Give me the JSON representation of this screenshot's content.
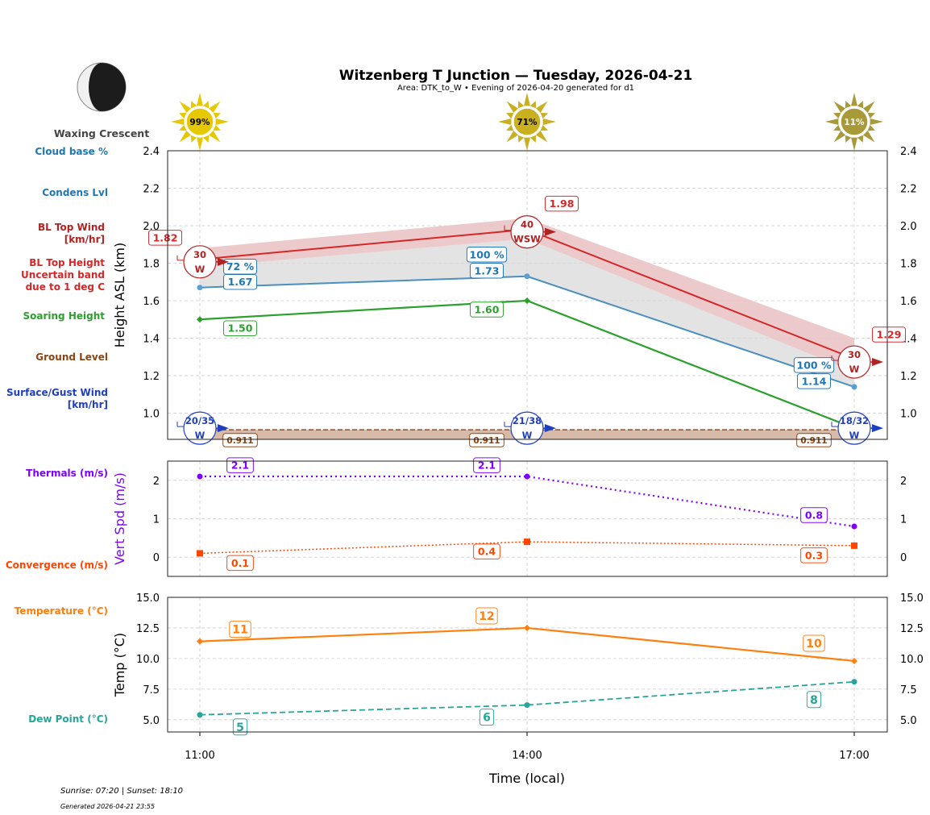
{
  "title": "Witzenberg T Junction — Tuesday, 2026-04-21",
  "subtitle": "Area: DTK_to_W • Evening of 2026-04-20 generated for d1",
  "moon": {
    "phase": "Waxing Crescent",
    "icon": "moon-waxing-crescent-icon"
  },
  "suns": [
    {
      "time": "11:00",
      "label": "99%",
      "color": "#e6c800"
    },
    {
      "time": "14:00",
      "label": "71%",
      "color": "#c8b020"
    },
    {
      "time": "17:00",
      "label": "11%",
      "color": "#a89a38"
    }
  ],
  "row_labels": {
    "cloud_base": "Cloud base %",
    "condens": "Condens Lvl",
    "bl_top_wind": [
      "BL Top Wind",
      "[km/hr]"
    ],
    "bl_top_height": [
      "BL Top Height",
      "Uncertain band",
      "due to 1 deg C"
    ],
    "soaring": "Soaring Height",
    "ground": "Ground Level",
    "surface_wind": [
      "Surface/Gust Wind",
      "[km/hr]"
    ],
    "thermals": "Thermals (m/s)",
    "convergence": "Convergence (m/s)",
    "temperature": "Temperature (°C)",
    "dewpoint": "Dew Point (°C)"
  },
  "footer": {
    "sun_times": "Sunrise: 07:20 | Sunset: 18:10",
    "generated": "Generated 2026-04-21 23:55"
  },
  "colors": {
    "bl_top": "#d62728",
    "condens": "#1f77b4",
    "soaring": "#2ca02c",
    "ground": "#8b4513",
    "surface_wind": "#1f3fbf",
    "thermals": "#7f00ff",
    "convergence": "#ff4500",
    "temperature": "#ff7f0e",
    "dewpoint": "#26a69a"
  },
  "chart_data": [
    {
      "type": "line",
      "ylabel": "Height ASL (km)",
      "x": [
        "11:00",
        "14:00",
        "17:00"
      ],
      "ylim": [
        0.86,
        2.4
      ],
      "yticks": [
        "1.0",
        "1.2",
        "1.4",
        "1.6",
        "1.8",
        "2.0",
        "2.2",
        "2.4"
      ],
      "grid": true,
      "series": [
        {
          "key": "bl_top",
          "values": [
            1.82,
            1.98,
            1.29
          ],
          "labels": [
            "1.82",
            "1.98",
            "1.29"
          ],
          "band": [
            [
              1.78,
              1.88
            ],
            [
              1.93,
              2.04
            ],
            [
              1.22,
              1.4
            ]
          ]
        },
        {
          "key": "condens",
          "values": [
            1.67,
            1.73,
            1.14
          ],
          "labels": [
            "1.67",
            "1.73",
            "1.14"
          ],
          "cloud_base_pct": [
            "72 %",
            "100 %",
            "100 %"
          ]
        },
        {
          "key": "soaring",
          "values": [
            1.5,
            1.6,
            0.92
          ],
          "labels": [
            "1.50",
            "1.60",
            ""
          ]
        },
        {
          "key": "ground",
          "values": [
            0.911,
            0.911,
            0.911
          ],
          "labels": [
            "0.911",
            "0.911",
            "0.911"
          ]
        }
      ],
      "bl_top_wind": [
        {
          "speed": "30",
          "dir": "W"
        },
        {
          "speed": "40",
          "dir": "WSW"
        },
        {
          "speed": "30",
          "dir": "W"
        }
      ],
      "surface_wind": [
        {
          "speed": "20/35",
          "dir": "W"
        },
        {
          "speed": "21/38",
          "dir": "W"
        },
        {
          "speed": "18/32",
          "dir": "W"
        }
      ]
    },
    {
      "type": "line",
      "ylabel": "Vert Spd (m/s)",
      "x": [
        "11:00",
        "14:00",
        "17:00"
      ],
      "ylim": [
        -0.5,
        2.5
      ],
      "yticks": [
        "0",
        "1",
        "2"
      ],
      "grid": true,
      "series": [
        {
          "key": "thermals",
          "values": [
            2.1,
            2.1,
            0.8
          ],
          "labels": [
            "2.1",
            "2.1",
            "0.8"
          ]
        },
        {
          "key": "convergence",
          "values": [
            0.1,
            0.4,
            0.3
          ],
          "labels": [
            "0.1",
            "0.4",
            "0.3"
          ]
        }
      ]
    },
    {
      "type": "line",
      "ylabel": "Temp (°C)",
      "xlabel": "Time (local)",
      "x": [
        "11:00",
        "14:00",
        "17:00"
      ],
      "ylim": [
        4,
        15
      ],
      "yticks": [
        "5.0",
        "7.5",
        "10.0",
        "12.5",
        "15.0"
      ],
      "grid": true,
      "series": [
        {
          "key": "temperature",
          "values": [
            11.4,
            12.5,
            9.8
          ],
          "labels": [
            "11",
            "12",
            "10"
          ]
        },
        {
          "key": "dewpoint",
          "values": [
            5.4,
            6.2,
            8.1
          ],
          "labels": [
            "5",
            "6",
            "8"
          ]
        }
      ]
    }
  ]
}
